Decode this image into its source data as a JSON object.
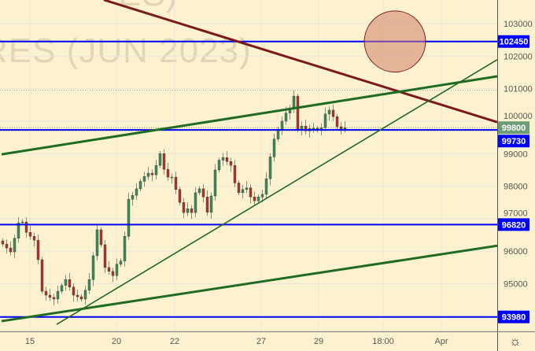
{
  "watermark": {
    "line1": "ES)",
    "line2": "RES (JUN 2023)"
  },
  "colors": {
    "background": "#fdf2cf",
    "support_resistance": "#0000ff",
    "trend_down": "#7b1a1a",
    "trend_up": "#1f6b22",
    "candle_up": "#3e8a5e",
    "candle_down": "#b3332b",
    "last_price": "#6f9c78",
    "target_circle": "#d08a70"
  },
  "chart_data": {
    "type": "candlestick",
    "title": "",
    "ylim": [
      93500,
      103700
    ],
    "grid": true,
    "y_ticks": [
      "103000",
      "102000",
      "101000",
      "100000",
      "99000",
      "98000",
      "97000",
      "96000",
      "95000"
    ],
    "x_ticks": [
      "15",
      "20",
      "22",
      "27",
      "29",
      "18:00",
      "Apr"
    ],
    "closes": [
      96220,
      96100,
      95980,
      96400,
      96875,
      96900,
      96580,
      96460,
      96340,
      95740,
      94770,
      94650,
      94580,
      94530,
      94770,
      94950,
      95130,
      94900,
      94650,
      94600,
      94530,
      94800,
      95130,
      95860,
      96660,
      96200,
      95500,
      95380,
      95250,
      95600,
      95700,
      96460,
      97600,
      97720,
      97920,
      98150,
      98300,
      98400,
      98350,
      98640,
      99000,
      98520,
      98280,
      98280,
      97900,
      97500,
      97190,
      97310,
      97190,
      97800,
      97920,
      97670,
      97200,
      97700,
      98500,
      98800,
      98880,
      98760,
      98640,
      98100,
      97800,
      97900,
      97950,
      97670,
      97550,
      97670,
      97750,
      98230,
      98900,
      99450,
      99750,
      100000,
      100250,
      100390,
      100770,
      99730,
      99850,
      99700,
      99780,
      99780,
      99730,
      99800,
      100220,
      100340,
      100140,
      99830,
      99760,
      99800
    ],
    "horizontal_levels": [
      {
        "price": 102450,
        "label": "102450"
      },
      {
        "price": 99730,
        "label": "99730"
      },
      {
        "price": 96820,
        "label": "96820"
      },
      {
        "price": 93980,
        "label": "93980"
      }
    ],
    "last_price": {
      "price": 99800,
      "label": "99800"
    },
    "recent_high": 100950,
    "trendlines": [
      {
        "kind": "down",
        "from": {
          "bar": 26,
          "price": 103730
        },
        "to": {
          "bar": 126,
          "price": 99970
        }
      },
      {
        "kind": "up-channel-top",
        "from": {
          "bar": 0,
          "price": 98980
        },
        "to": {
          "bar": 126,
          "price": 101380
        }
      },
      {
        "kind": "up-support",
        "from": {
          "bar": 14,
          "price": 93750
        },
        "to": {
          "bar": 126,
          "price": 101890
        }
      },
      {
        "kind": "up-channel-bottom",
        "from": {
          "bar": 0,
          "price": 93850
        },
        "to": {
          "bar": 126,
          "price": 96170
        }
      }
    ],
    "target_zone": {
      "bar": 100,
      "price": 102450,
      "radius_price": 940
    }
  },
  "settings_icon": "gear-icon"
}
